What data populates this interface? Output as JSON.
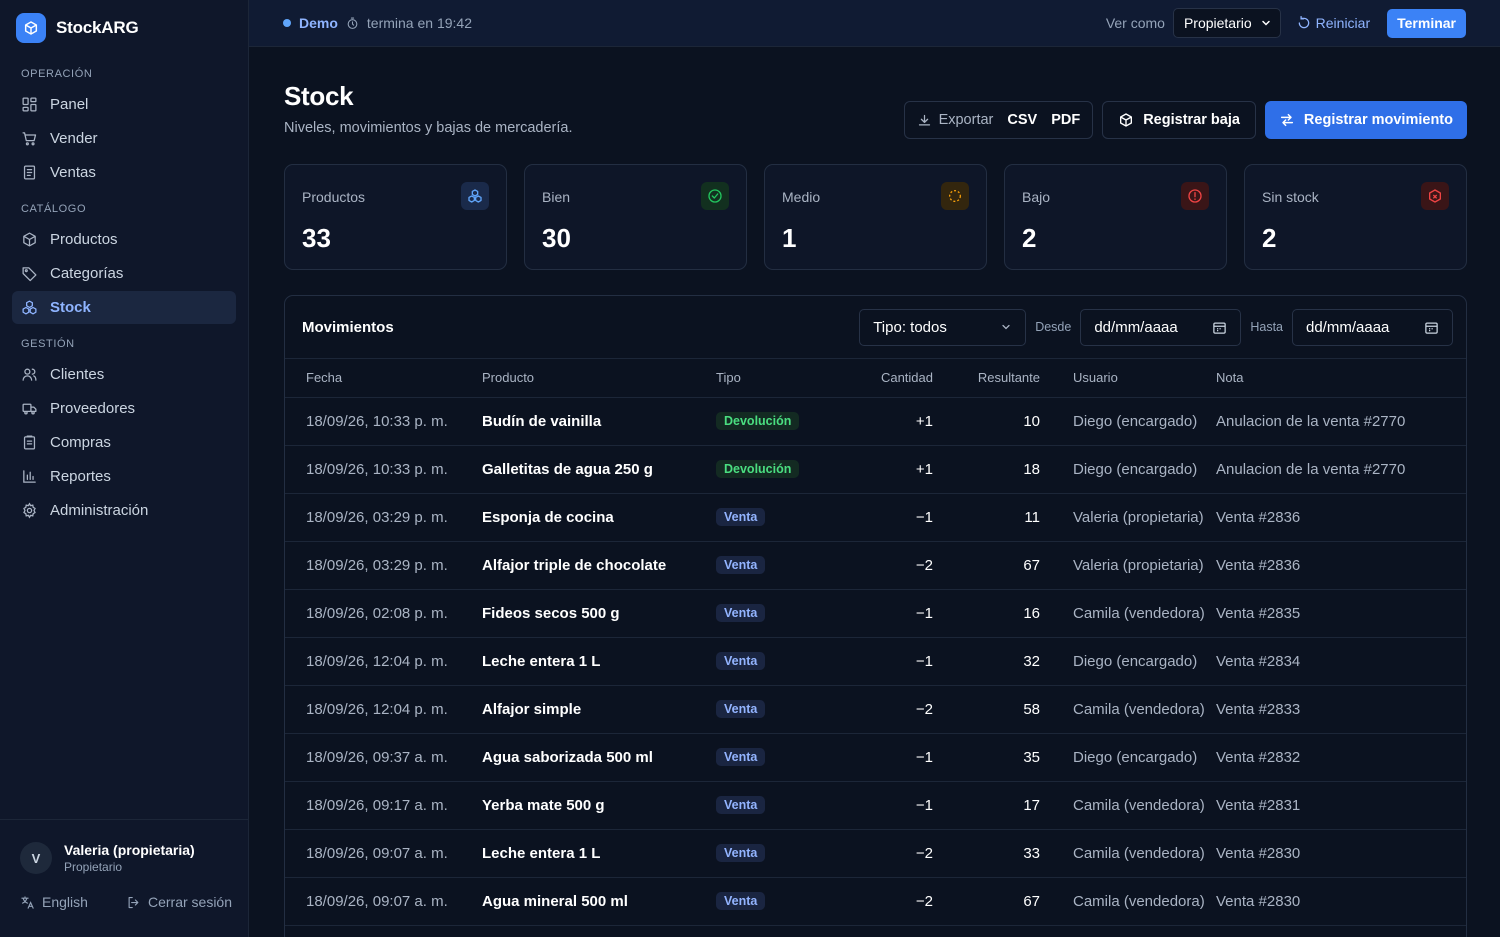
{
  "brand": {
    "name": "StockARG"
  },
  "sidebar": {
    "sections": [
      {
        "title": "OPERACIÓN",
        "items": [
          {
            "label": "Panel",
            "icon": "dashboard-icon"
          },
          {
            "label": "Vender",
            "icon": "cart-icon"
          },
          {
            "label": "Ventas",
            "icon": "receipt-icon"
          }
        ]
      },
      {
        "title": "CATÁLOGO",
        "items": [
          {
            "label": "Productos",
            "icon": "box-icon"
          },
          {
            "label": "Categorías",
            "icon": "tag-icon"
          },
          {
            "label": "Stock",
            "icon": "boxes-icon",
            "active": true
          }
        ]
      },
      {
        "title": "GESTIÓN",
        "items": [
          {
            "label": "Clientes",
            "icon": "users-icon"
          },
          {
            "label": "Proveedores",
            "icon": "truck-icon"
          },
          {
            "label": "Compras",
            "icon": "clipboard-icon"
          },
          {
            "label": "Reportes",
            "icon": "bar-chart-icon"
          },
          {
            "label": "Administración",
            "icon": "gear-icon"
          }
        ]
      }
    ],
    "user": {
      "initial": "V",
      "name": "Valeria (propietaria)",
      "role": "Propietario"
    },
    "language": "English",
    "logout": "Cerrar sesión"
  },
  "topbar": {
    "demo_label": "Demo",
    "demo_timer": "termina en 19:42",
    "view_as_label": "Ver como",
    "view_as_value": "Propietario",
    "reset_label": "Reiniciar",
    "finish_label": "Terminar"
  },
  "page": {
    "title": "Stock",
    "subtitle": "Niveles, movimientos y bajas de mercadería.",
    "export_label": "Exportar",
    "export_csv": "CSV",
    "export_pdf": "PDF",
    "btn_baja": "Registrar baja",
    "btn_movimiento": "Registrar movimiento"
  },
  "stats": [
    {
      "label": "Productos",
      "value": "33",
      "icon": "boxes-icon",
      "color": "#60a5fa"
    },
    {
      "label": "Bien",
      "value": "30",
      "icon": "check-circle-icon",
      "color": "#22c55e"
    },
    {
      "label": "Medio",
      "value": "1",
      "icon": "loader-circle-icon",
      "color": "#f59e0b"
    },
    {
      "label": "Bajo",
      "value": "2",
      "icon": "alert-circle-icon",
      "color": "#ef4444"
    },
    {
      "label": "Sin stock",
      "value": "2",
      "icon": "box-x-icon",
      "color": "#ef4444"
    }
  ],
  "movements": {
    "title": "Movimientos",
    "type_filter": "Tipo: todos",
    "from_label": "Desde",
    "to_label": "Hasta",
    "date_placeholder": "dd/mm/aaaa",
    "columns": [
      "Fecha",
      "Producto",
      "Tipo",
      "Cantidad",
      "Resultante",
      "Usuario",
      "Nota"
    ],
    "rows": [
      {
        "fecha": "18/09/26, 10:33 p. m.",
        "producto": "Budín de vainilla",
        "tipo": "Devolución",
        "cantidad": "+1",
        "resultante": "10",
        "usuario": "Diego (encargado)",
        "nota": "Anulacion de la venta #2770"
      },
      {
        "fecha": "18/09/26, 10:33 p. m.",
        "producto": "Galletitas de agua 250 g",
        "tipo": "Devolución",
        "cantidad": "+1",
        "resultante": "18",
        "usuario": "Diego (encargado)",
        "nota": "Anulacion de la venta #2770"
      },
      {
        "fecha": "18/09/26, 03:29 p. m.",
        "producto": "Esponja de cocina",
        "tipo": "Venta",
        "cantidad": "−1",
        "resultante": "11",
        "usuario": "Valeria (propietaria)",
        "nota": "Venta #2836"
      },
      {
        "fecha": "18/09/26, 03:29 p. m.",
        "producto": "Alfajor triple de chocolate",
        "tipo": "Venta",
        "cantidad": "−2",
        "resultante": "67",
        "usuario": "Valeria (propietaria)",
        "nota": "Venta #2836"
      },
      {
        "fecha": "18/09/26, 02:08 p. m.",
        "producto": "Fideos secos 500 g",
        "tipo": "Venta",
        "cantidad": "−1",
        "resultante": "16",
        "usuario": "Camila (vendedora)",
        "nota": "Venta #2835"
      },
      {
        "fecha": "18/09/26, 12:04 p. m.",
        "producto": "Leche entera 1 L",
        "tipo": "Venta",
        "cantidad": "−1",
        "resultante": "32",
        "usuario": "Diego (encargado)",
        "nota": "Venta #2834"
      },
      {
        "fecha": "18/09/26, 12:04 p. m.",
        "producto": "Alfajor simple",
        "tipo": "Venta",
        "cantidad": "−2",
        "resultante": "58",
        "usuario": "Camila (vendedora)",
        "nota": "Venta #2833"
      },
      {
        "fecha": "18/09/26, 09:37 a. m.",
        "producto": "Agua saborizada 500 ml",
        "tipo": "Venta",
        "cantidad": "−1",
        "resultante": "35",
        "usuario": "Diego (encargado)",
        "nota": "Venta #2832"
      },
      {
        "fecha": "18/09/26, 09:17 a. m.",
        "producto": "Yerba mate 500 g",
        "tipo": "Venta",
        "cantidad": "−1",
        "resultante": "17",
        "usuario": "Camila (vendedora)",
        "nota": "Venta #2831"
      },
      {
        "fecha": "18/09/26, 09:07 a. m.",
        "producto": "Leche entera 1 L",
        "tipo": "Venta",
        "cantidad": "−2",
        "resultante": "33",
        "usuario": "Camila (vendedora)",
        "nota": "Venta #2830"
      },
      {
        "fecha": "18/09/26, 09:07 a. m.",
        "producto": "Agua mineral 500 ml",
        "tipo": "Venta",
        "cantidad": "−2",
        "resultante": "67",
        "usuario": "Camila (vendedora)",
        "nota": "Venta #2830"
      }
    ]
  }
}
